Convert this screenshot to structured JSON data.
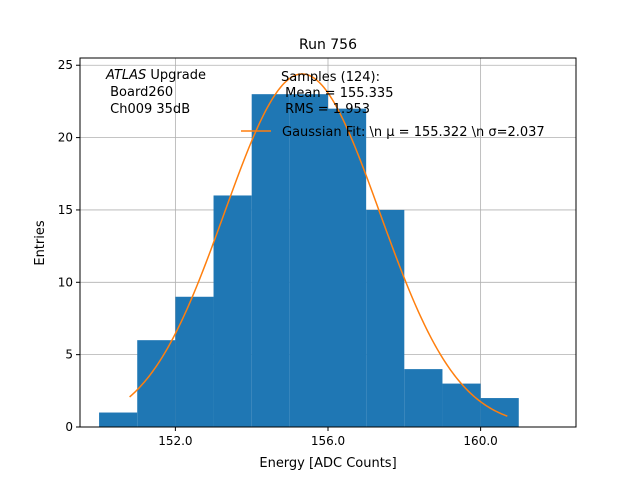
{
  "chart_data": {
    "type": "bar",
    "title": "Run 756",
    "xlabel": "Energy [ADC Counts]",
    "ylabel": "Entries",
    "xlim": [
      149.5,
      162.5
    ],
    "ylim": [
      0,
      25.5
    ],
    "x_ticks": [
      152.0,
      156.0,
      160.0
    ],
    "x_tick_labels": [
      "152.0",
      "156.0",
      "160.0"
    ],
    "y_ticks": [
      0,
      5,
      10,
      15,
      20,
      25
    ],
    "y_tick_labels": [
      "0",
      "5",
      "10",
      "15",
      "20",
      "25"
    ],
    "grid": true,
    "bins": [
      {
        "x0": 150,
        "x1": 151,
        "count": 1
      },
      {
        "x0": 151,
        "x1": 152,
        "count": 6
      },
      {
        "x0": 152,
        "x1": 153,
        "count": 9
      },
      {
        "x0": 153,
        "x1": 154,
        "count": 16
      },
      {
        "x0": 154,
        "x1": 155,
        "count": 23
      },
      {
        "x0": 155,
        "x1": 156,
        "count": 23
      },
      {
        "x0": 156,
        "x1": 157,
        "count": 22
      },
      {
        "x0": 157,
        "x1": 158,
        "count": 15
      },
      {
        "x0": 158,
        "x1": 159,
        "count": 4
      },
      {
        "x0": 159,
        "x1": 160,
        "count": 3
      },
      {
        "x0": 160,
        "x1": 161,
        "count": 2
      }
    ],
    "hist_color": "#1f77b4",
    "fit": {
      "amplitude": 24.4,
      "mu": 155.322,
      "sigma": 2.037,
      "x_range": [
        150.8,
        160.7
      ],
      "color": "#ff7f0e"
    },
    "annotation_lines": [
      "ATLAS Upgrade",
      " Board260",
      " Ch009 35dB"
    ],
    "annotation_italic": "ATLAS",
    "samples_lines": [
      "Samples (124):",
      " Mean = 155.335",
      " RMS = 1.953"
    ],
    "legend_label": "Gaussian Fit: \\n μ = 155.322 \\n σ=2.037",
    "legend_placement": "top-right"
  }
}
